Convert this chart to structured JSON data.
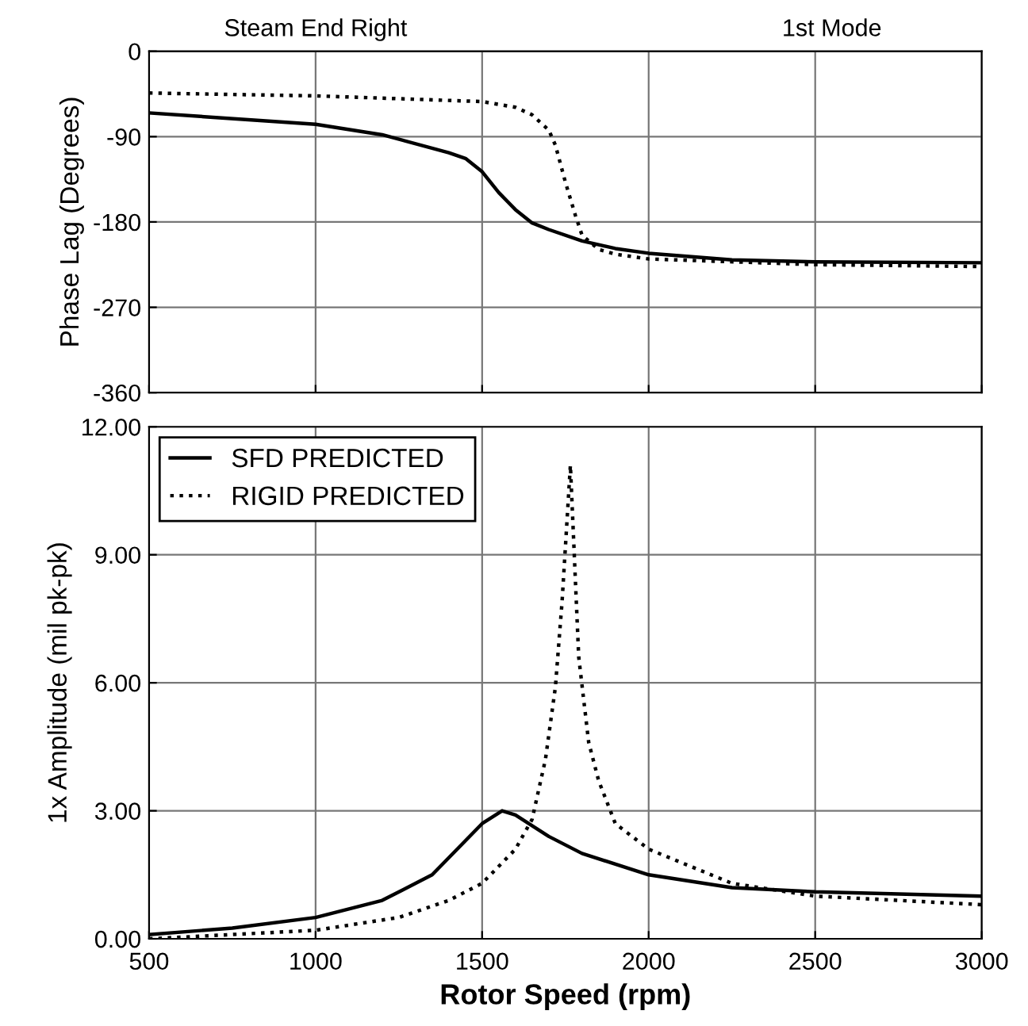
{
  "chart_data": [
    {
      "type": "line",
      "annotations": [
        "Steam End Right",
        "1st Mode"
      ],
      "ylabel": "Phase Lag (Degrees)",
      "xlim": [
        500,
        3000
      ],
      "xticks": [
        500,
        1000,
        1500,
        2000,
        2500,
        3000
      ],
      "ylim": [
        -360,
        0
      ],
      "yticks": [
        0,
        -90,
        -180,
        -270,
        -360
      ],
      "grid": true,
      "tick_labels": "y",
      "legend": false,
      "series": [
        {
          "color": "#000000",
          "line_style": "solid",
          "x": [
            500,
            1000,
            1200,
            1400,
            1450,
            1500,
            1550,
            1600,
            1650,
            1700,
            1800,
            1900,
            2000,
            2250,
            2500,
            3000
          ],
          "values": [
            -65,
            -77,
            -88,
            -107,
            -113,
            -127,
            -149,
            -167,
            -181,
            -188,
            -200,
            -208,
            -213,
            -220,
            -222,
            -223
          ]
        },
        {
          "color": "#000000",
          "line_style": "dotted",
          "x": [
            500,
            1000,
            1500,
            1600,
            1650,
            1700,
            1720,
            1750,
            1780,
            1800,
            1850,
            1900,
            2000,
            2500,
            3000
          ],
          "values": [
            -44,
            -47,
            -53,
            -59,
            -67,
            -83,
            -99,
            -138,
            -173,
            -194,
            -209,
            -214,
            -219,
            -225,
            -227
          ]
        }
      ]
    },
    {
      "type": "line",
      "xlabel": "Rotor Speed (rpm)",
      "ylabel": "1x Amplitude (mil pk-pk)",
      "xlim": [
        500,
        3000
      ],
      "xticks": [
        500,
        1000,
        1500,
        2000,
        2500,
        3000
      ],
      "ylim": [
        0,
        12
      ],
      "yticks": [
        {
          "value": 0,
          "label": "0.00"
        },
        {
          "value": 3,
          "label": "3.00"
        },
        {
          "value": 6,
          "label": "6.00"
        },
        {
          "value": 9,
          "label": "9.00"
        },
        {
          "value": 12,
          "label": "12.00"
        }
      ],
      "grid": true,
      "legend": "top left",
      "series": [
        {
          "name": "SFD PREDICTED",
          "color": "#000000",
          "line_style": "solid",
          "x": [
            500,
            750,
            1000,
            1200,
            1350,
            1450,
            1500,
            1560,
            1600,
            1700,
            1800,
            2000,
            2250,
            2500,
            3000
          ],
          "values": [
            0.1,
            0.25,
            0.5,
            0.9,
            1.5,
            2.3,
            2.7,
            3.0,
            2.9,
            2.4,
            2.0,
            1.5,
            1.2,
            1.1,
            1.0
          ]
        },
        {
          "name": "RIGID PREDICTED",
          "color": "#000000",
          "line_style": "dotted",
          "x": [
            500,
            1000,
            1250,
            1400,
            1500,
            1600,
            1650,
            1690,
            1720,
            1740,
            1765,
            1790,
            1820,
            1850,
            1900,
            2000,
            2250,
            2500,
            3000
          ],
          "values": [
            0.0,
            0.2,
            0.5,
            0.9,
            1.3,
            2.1,
            2.8,
            4.2,
            5.9,
            7.9,
            11.1,
            6.6,
            4.6,
            3.7,
            2.7,
            2.1,
            1.3,
            1.0,
            0.8
          ]
        }
      ]
    }
  ]
}
